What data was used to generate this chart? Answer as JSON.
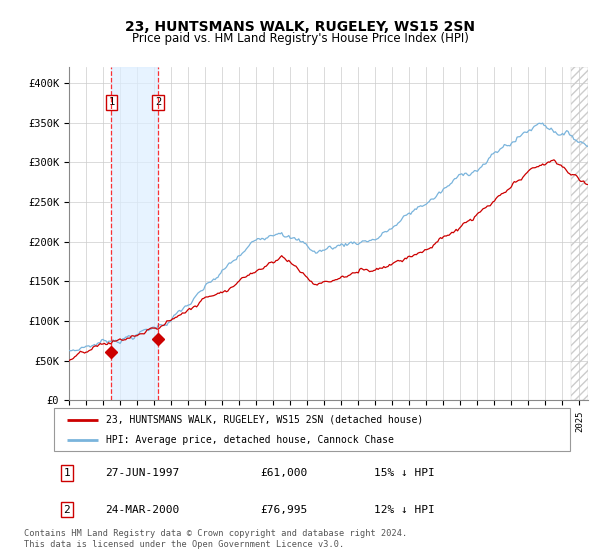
{
  "title": "23, HUNTSMANS WALK, RUGELEY, WS15 2SN",
  "subtitle": "Price paid vs. HM Land Registry's House Price Index (HPI)",
  "legend_line1": "23, HUNTSMANS WALK, RUGELEY, WS15 2SN (detached house)",
  "legend_line2": "HPI: Average price, detached house, Cannock Chase",
  "sale1_date": "27-JUN-1997",
  "sale1_price": 61000,
  "sale1_hpi": "15% ↓ HPI",
  "sale2_date": "24-MAR-2000",
  "sale2_price": 76995,
  "sale2_hpi": "12% ↓ HPI",
  "footer": "Contains HM Land Registry data © Crown copyright and database right 2024.\nThis data is licensed under the Open Government Licence v3.0.",
  "hpi_color": "#7ab4dc",
  "price_color": "#cc0000",
  "marker_color": "#cc0000",
  "sale1_x": 1997.49,
  "sale2_x": 2000.23,
  "xmin": 1995.0,
  "xmax": 2025.5,
  "ymin": 0,
  "ymax": 420000,
  "yticks": [
    0,
    50000,
    100000,
    150000,
    200000,
    250000,
    300000,
    350000,
    400000
  ],
  "ytick_labels": [
    "£0",
    "£50K",
    "£100K",
    "£150K",
    "£200K",
    "£250K",
    "£300K",
    "£350K",
    "£400K"
  ]
}
